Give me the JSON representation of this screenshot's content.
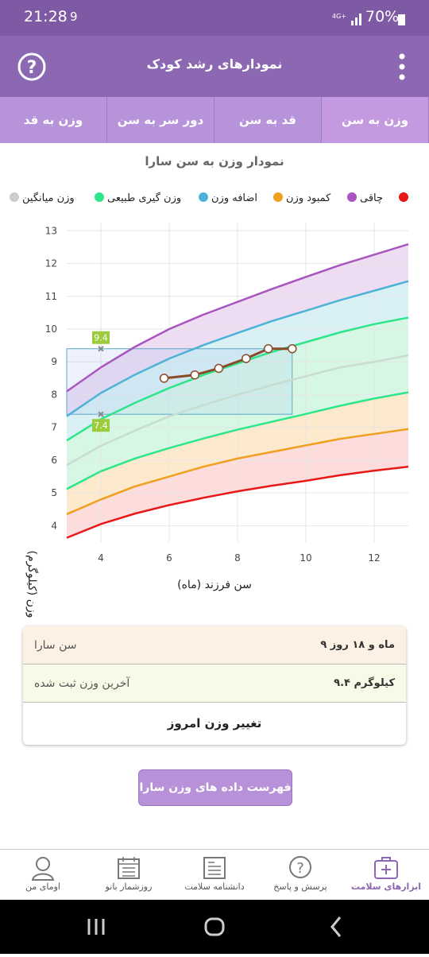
{
  "status_bar": {
    "time": "21:28",
    "notification": "9",
    "battery": "70%"
  },
  "header": {
    "title": "نمودارهای رشد کودک"
  },
  "tabs": [
    "وزن به قد",
    "دور سر به سن",
    "قد به سن",
    "وزن به سن"
  ],
  "chart_data": {
    "type": "line",
    "title": "نمودار وزن به سن سارا",
    "x_label": "سن فرزند (ماه)",
    "y_label": "وزن (کیلوگرم)",
    "xlim": [
      3,
      13
    ],
    "ylim": [
      3.5,
      13.25
    ],
    "xticks": [
      4,
      6,
      8,
      10,
      12
    ],
    "yticks": [
      4,
      5,
      6,
      7,
      8,
      9,
      10,
      11,
      12,
      13
    ],
    "grid": true,
    "legend": [
      {
        "name": "وزن میانگین",
        "color": "#cccccc"
      },
      {
        "name": "وزن گیری طبیعی",
        "color": "#2ee68a"
      },
      {
        "name": "اضافه وزن",
        "color": "#4db3d6"
      },
      {
        "name": "کمبود وزن",
        "color": "#f0a020"
      },
      {
        "name": "چاقی",
        "color": "#a855c0"
      },
      {
        "name": null,
        "color": "#e81818"
      }
    ],
    "x": [
      3,
      4,
      5,
      6,
      7,
      8,
      9,
      10,
      11,
      12,
      13
    ],
    "series": [
      {
        "color": "#e81818",
        "values": [
          3.63,
          4.05,
          4.37,
          4.63,
          4.85,
          5.05,
          5.22,
          5.37,
          5.54,
          5.68,
          5.8
        ]
      },
      {
        "color": "#f0a020",
        "fill": "#fddcdc",
        "values": [
          4.35,
          4.8,
          5.2,
          5.5,
          5.8,
          6.05,
          6.25,
          6.45,
          6.65,
          6.8,
          6.95
        ]
      },
      {
        "color": "#2ee68a",
        "fill": "#fde9cc",
        "values": [
          5.12,
          5.66,
          6.05,
          6.37,
          6.66,
          6.93,
          7.17,
          7.41,
          7.66,
          7.88,
          8.07
        ]
      },
      {
        "color": "#c8dcd0",
        "fill": "#d6f7e4",
        "values": [
          5.85,
          6.44,
          6.9,
          7.34,
          7.68,
          8.0,
          8.29,
          8.56,
          8.83,
          9.0,
          9.2
        ]
      },
      {
        "color": "#2ee68a",
        "fill": "#d6f7e4",
        "values": [
          6.6,
          7.25,
          7.75,
          8.2,
          8.6,
          8.95,
          9.3,
          9.6,
          9.9,
          10.15,
          10.35
        ]
      },
      {
        "color": "#4db3d6",
        "fill": "#d9f0f5",
        "values": [
          7.34,
          8.05,
          8.61,
          9.1,
          9.51,
          9.88,
          10.24,
          10.56,
          10.88,
          11.17,
          11.46
        ]
      },
      {
        "color": "#a855c0",
        "fill": "#eedcf3",
        "values": [
          8.1,
          8.83,
          9.46,
          10.0,
          10.44,
          10.83,
          11.22,
          11.59,
          11.95,
          12.27,
          12.59
        ]
      }
    ],
    "measurements": {
      "color": "#8a4a28",
      "x": [
        5.85,
        6.75,
        7.45,
        8.25,
        8.9,
        9.6
      ],
      "values": [
        8.5,
        8.6,
        8.8,
        9.1,
        9.4,
        9.4
      ]
    },
    "range_markers": {
      "x": 4,
      "values": [
        9.4,
        7.4
      ],
      "color": "#9ccc3c"
    },
    "range_box": {
      "x": 9.6,
      "values": [
        7.4,
        9.4
      ],
      "color": "#5aa8c8"
    }
  },
  "info": [
    {
      "label": "سن سارا",
      "value": "۹ ماه و ۱۸ روز"
    },
    {
      "label": "آخرین وزن ثبت شده",
      "value": "۹.۴ کیلوگرم"
    }
  ],
  "change_button": "تغییر وزن امروز",
  "list_button": "فهرست داده های وزن سارا",
  "nav": [
    "اومای من",
    "روزشمار بانو",
    "دانشنامه سلامت",
    "پرسش و پاسخ",
    "ابزارهای سلامت"
  ]
}
